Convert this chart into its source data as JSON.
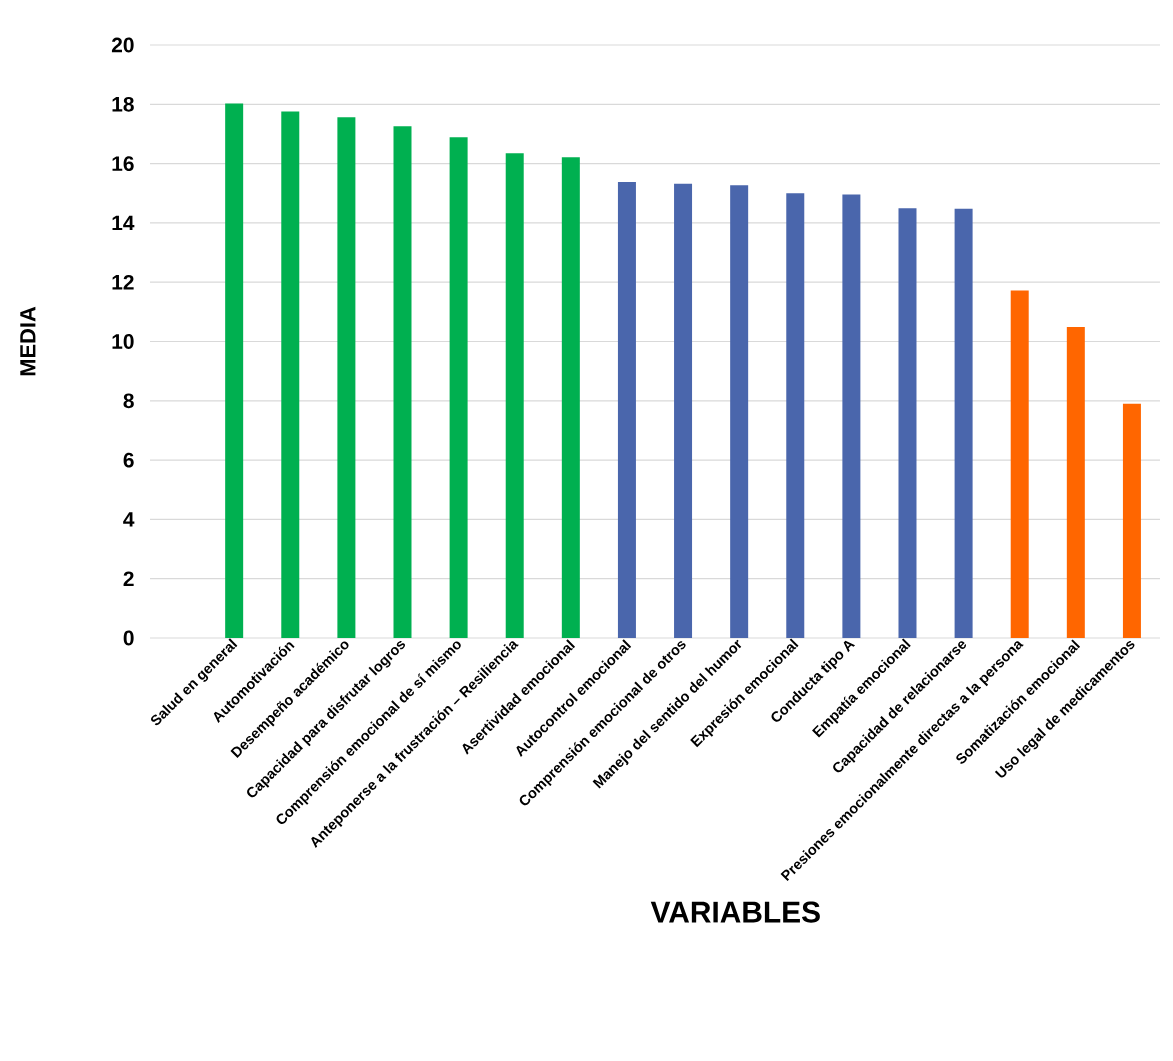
{
  "chart_data": {
    "type": "bar",
    "xlabel": "VARIABLES",
    "ylabel": "MEDIA",
    "categories": [
      "Salud en general",
      "Automotivación",
      "Desempeño académico",
      "Capacidad para disfrutar logros",
      "Comprensión emocional de sí mismo",
      "Anteponerse a la frustración – Resiliencia",
      "Asertividad emocional",
      "Autocontrol emocional",
      "Comprensión emocional de otros",
      "Manejo del sentido del humor",
      "Expresión emocional",
      "Conducta tipo A",
      "Empatía emocional",
      "Capacidad de relacionarse",
      "Presiones emocionalmente directas a la persona",
      "Somatización emocional",
      "Uso legal de medicamentos"
    ],
    "values": [
      18.03,
      17.76,
      17.56,
      17.26,
      16.89,
      16.35,
      16.21,
      15.38,
      15.32,
      15.27,
      15.0,
      14.96,
      14.49,
      14.48,
      11.72,
      10.49,
      7.9
    ],
    "colors": [
      "#00b050",
      "#00b050",
      "#00b050",
      "#00b050",
      "#00b050",
      "#00b050",
      "#00b050",
      "#4a66ac",
      "#4a66ac",
      "#4a66ac",
      "#4a66ac",
      "#4a66ac",
      "#4a66ac",
      "#4a66ac",
      "#ff6600",
      "#ff6600",
      "#ff6600"
    ],
    "ylim": [
      0,
      20
    ],
    "yticks": [
      0,
      2,
      4,
      6,
      8,
      10,
      12,
      14,
      16,
      18,
      20
    ],
    "grid": "y"
  }
}
